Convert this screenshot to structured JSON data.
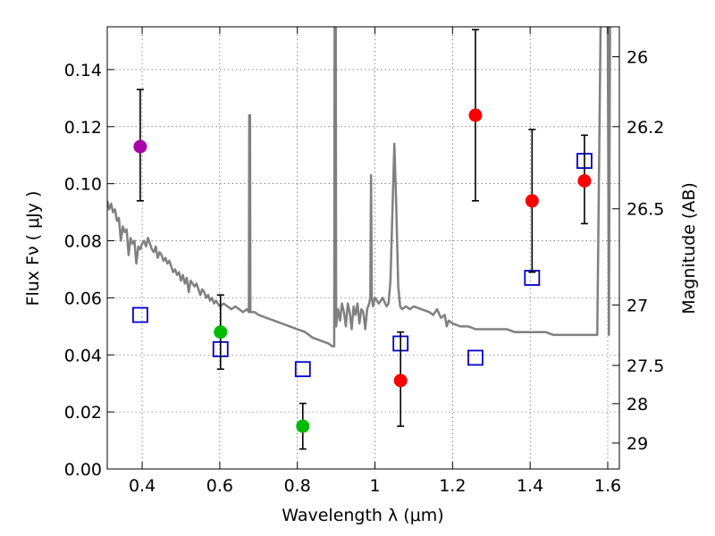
{
  "chart_data": {
    "type": "scatter",
    "xlabel": "Wavelength  λ (μm)",
    "ylabel": "Flux  Fν  ( μJy )",
    "ylabel2": "Magnitude (AB)",
    "xlim": [
      0.31,
      1.63
    ],
    "ylim": [
      0.0,
      0.155
    ],
    "grid": true,
    "xticks": [
      {
        "value": 0.4,
        "label": "0.4"
      },
      {
        "value": 0.6,
        "label": "0.6"
      },
      {
        "value": 0.8,
        "label": "0.8"
      },
      {
        "value": 1.0,
        "label": "1"
      },
      {
        "value": 1.2,
        "label": "1.2"
      },
      {
        "value": 1.4,
        "label": "1.4"
      },
      {
        "value": 1.6,
        "label": "1.6"
      }
    ],
    "yticks": [
      {
        "value": 0.0,
        "label": "0.00"
      },
      {
        "value": 0.02,
        "label": "0.02"
      },
      {
        "value": 0.04,
        "label": "0.04"
      },
      {
        "value": 0.06,
        "label": "0.06"
      },
      {
        "value": 0.08,
        "label": "0.08"
      },
      {
        "value": 0.1,
        "label": "0.10"
      },
      {
        "value": 0.12,
        "label": "0.12"
      },
      {
        "value": 0.14,
        "label": "0.14"
      }
    ],
    "mag_ticks": [
      {
        "flux": 0.1445,
        "label": "26"
      },
      {
        "flux": 0.12,
        "label": "26.2"
      },
      {
        "flux": 0.0912,
        "label": "26.5"
      },
      {
        "flux": 0.0575,
        "label": "27"
      },
      {
        "flux": 0.0363,
        "label": "27.5"
      },
      {
        "flux": 0.0229,
        "label": "28"
      },
      {
        "flux": 0.0091,
        "label": "29"
      }
    ],
    "points": [
      {
        "x": 0.395,
        "y": 0.113,
        "yerr_low": 0.094,
        "yerr_high": 0.133,
        "color": "#aa00aa"
      },
      {
        "x": 0.602,
        "y": 0.048,
        "yerr_low": 0.035,
        "yerr_high": 0.061,
        "color": "#00bb00"
      },
      {
        "x": 0.814,
        "y": 0.015,
        "yerr_low": 0.007,
        "yerr_high": 0.023,
        "color": "#00bb00"
      },
      {
        "x": 1.066,
        "y": 0.031,
        "yerr_low": 0.015,
        "yerr_high": 0.048,
        "color": "#ff0000"
      },
      {
        "x": 1.259,
        "y": 0.124,
        "yerr_low": 0.094,
        "yerr_high": 0.154,
        "color": "#ff0000"
      },
      {
        "x": 1.405,
        "y": 0.094,
        "yerr_low": 0.069,
        "yerr_high": 0.119,
        "color": "#ff0000"
      },
      {
        "x": 1.54,
        "y": 0.101,
        "yerr_low": 0.086,
        "yerr_high": 0.117,
        "color": "#ff0000"
      }
    ],
    "model_points": [
      {
        "x": 0.395,
        "y": 0.054
      },
      {
        "x": 0.602,
        "y": 0.042
      },
      {
        "x": 0.814,
        "y": 0.035
      },
      {
        "x": 1.066,
        "y": 0.044
      },
      {
        "x": 1.259,
        "y": 0.039
      },
      {
        "x": 1.405,
        "y": 0.067
      },
      {
        "x": 1.54,
        "y": 0.108
      }
    ],
    "model_color": "#0000cc",
    "sed_color": "#808080",
    "sed_curve": [
      [
        0.31,
        0.094
      ],
      [
        0.315,
        0.091
      ],
      [
        0.32,
        0.093
      ],
      [
        0.325,
        0.09
      ],
      [
        0.33,
        0.091
      ],
      [
        0.335,
        0.087
      ],
      [
        0.34,
        0.088
      ],
      [
        0.345,
        0.08
      ],
      [
        0.35,
        0.085
      ],
      [
        0.355,
        0.083
      ],
      [
        0.36,
        0.084
      ],
      [
        0.365,
        0.075
      ],
      [
        0.37,
        0.081
      ],
      [
        0.375,
        0.079
      ],
      [
        0.38,
        0.08
      ],
      [
        0.385,
        0.072
      ],
      [
        0.39,
        0.078
      ],
      [
        0.395,
        0.077
      ],
      [
        0.4,
        0.079
      ],
      [
        0.405,
        0.08
      ],
      [
        0.41,
        0.078
      ],
      [
        0.415,
        0.081
      ],
      [
        0.42,
        0.079
      ],
      [
        0.425,
        0.077
      ],
      [
        0.43,
        0.076
      ],
      [
        0.435,
        0.078
      ],
      [
        0.44,
        0.074
      ],
      [
        0.445,
        0.076
      ],
      [
        0.45,
        0.075
      ],
      [
        0.455,
        0.073
      ],
      [
        0.46,
        0.074
      ],
      [
        0.465,
        0.072
      ],
      [
        0.47,
        0.073
      ],
      [
        0.475,
        0.071
      ],
      [
        0.48,
        0.069
      ],
      [
        0.485,
        0.07
      ],
      [
        0.49,
        0.068
      ],
      [
        0.495,
        0.069
      ],
      [
        0.5,
        0.066
      ],
      [
        0.505,
        0.068
      ],
      [
        0.51,
        0.065
      ],
      [
        0.515,
        0.067
      ],
      [
        0.52,
        0.062
      ],
      [
        0.525,
        0.066
      ],
      [
        0.53,
        0.065
      ],
      [
        0.535,
        0.064
      ],
      [
        0.54,
        0.065
      ],
      [
        0.545,
        0.063
      ],
      [
        0.55,
        0.061
      ],
      [
        0.555,
        0.063
      ],
      [
        0.56,
        0.062
      ],
      [
        0.565,
        0.06
      ],
      [
        0.57,
        0.061
      ],
      [
        0.575,
        0.059
      ],
      [
        0.58,
        0.06
      ],
      [
        0.585,
        0.058
      ],
      [
        0.59,
        0.059
      ],
      [
        0.6,
        0.057
      ],
      [
        0.61,
        0.058
      ],
      [
        0.62,
        0.057
      ],
      [
        0.63,
        0.056
      ],
      [
        0.64,
        0.057
      ],
      [
        0.65,
        0.056
      ],
      [
        0.66,
        0.055
      ],
      [
        0.67,
        0.056
      ],
      [
        0.675,
        0.055
      ],
      [
        0.676,
        0.124
      ],
      [
        0.678,
        0.124
      ],
      [
        0.679,
        0.055
      ],
      [
        0.69,
        0.055
      ],
      [
        0.7,
        0.054
      ],
      [
        0.72,
        0.053
      ],
      [
        0.74,
        0.052
      ],
      [
        0.76,
        0.051
      ],
      [
        0.78,
        0.05
      ],
      [
        0.8,
        0.049
      ],
      [
        0.82,
        0.048
      ],
      [
        0.84,
        0.046
      ],
      [
        0.86,
        0.045
      ],
      [
        0.88,
        0.044
      ],
      [
        0.89,
        0.043
      ],
      [
        0.895,
        0.043
      ],
      [
        0.896,
        0.16
      ],
      [
        0.899,
        0.16
      ],
      [
        0.9,
        0.05
      ],
      [
        0.905,
        0.056
      ],
      [
        0.91,
        0.052
      ],
      [
        0.915,
        0.058
      ],
      [
        0.92,
        0.055
      ],
      [
        0.925,
        0.05
      ],
      [
        0.93,
        0.058
      ],
      [
        0.935,
        0.055
      ],
      [
        0.94,
        0.049
      ],
      [
        0.945,
        0.057
      ],
      [
        0.95,
        0.054
      ],
      [
        0.955,
        0.058
      ],
      [
        0.96,
        0.051
      ],
      [
        0.965,
        0.056
      ],
      [
        0.97,
        0.055
      ],
      [
        0.975,
        0.049
      ],
      [
        0.98,
        0.056
      ],
      [
        0.985,
        0.058
      ],
      [
        0.988,
        0.06
      ],
      [
        0.99,
        0.103
      ],
      [
        0.992,
        0.06
      ],
      [
        0.995,
        0.057
      ],
      [
        1.0,
        0.06
      ],
      [
        1.01,
        0.058
      ],
      [
        1.02,
        0.06
      ],
      [
        1.03,
        0.057
      ],
      [
        1.035,
        0.058
      ],
      [
        1.04,
        0.066
      ],
      [
        1.045,
        0.09
      ],
      [
        1.05,
        0.114
      ],
      [
        1.055,
        0.092
      ],
      [
        1.06,
        0.064
      ],
      [
        1.065,
        0.057
      ],
      [
        1.07,
        0.056
      ],
      [
        1.08,
        0.057
      ],
      [
        1.09,
        0.056
      ],
      [
        1.1,
        0.057
      ],
      [
        1.12,
        0.056
      ],
      [
        1.14,
        0.055
      ],
      [
        1.15,
        0.054
      ],
      [
        1.16,
        0.056
      ],
      [
        1.17,
        0.053
      ],
      [
        1.18,
        0.054
      ],
      [
        1.185,
        0.05
      ],
      [
        1.19,
        0.052
      ],
      [
        1.2,
        0.051
      ],
      [
        1.22,
        0.05
      ],
      [
        1.24,
        0.05
      ],
      [
        1.26,
        0.049
      ],
      [
        1.28,
        0.049
      ],
      [
        1.3,
        0.049
      ],
      [
        1.32,
        0.049
      ],
      [
        1.34,
        0.049
      ],
      [
        1.36,
        0.048
      ],
      [
        1.38,
        0.048
      ],
      [
        1.4,
        0.048
      ],
      [
        1.42,
        0.048
      ],
      [
        1.44,
        0.048
      ],
      [
        1.46,
        0.047
      ],
      [
        1.48,
        0.047
      ],
      [
        1.5,
        0.047
      ],
      [
        1.52,
        0.047
      ],
      [
        1.54,
        0.047
      ],
      [
        1.56,
        0.047
      ],
      [
        1.573,
        0.047
      ],
      [
        1.582,
        0.16
      ],
      [
        1.595,
        0.16
      ],
      [
        1.6,
        0.16
      ],
      [
        1.603,
        0.047
      ],
      [
        1.606,
        0.16
      ],
      [
        1.63,
        0.16
      ]
    ]
  }
}
